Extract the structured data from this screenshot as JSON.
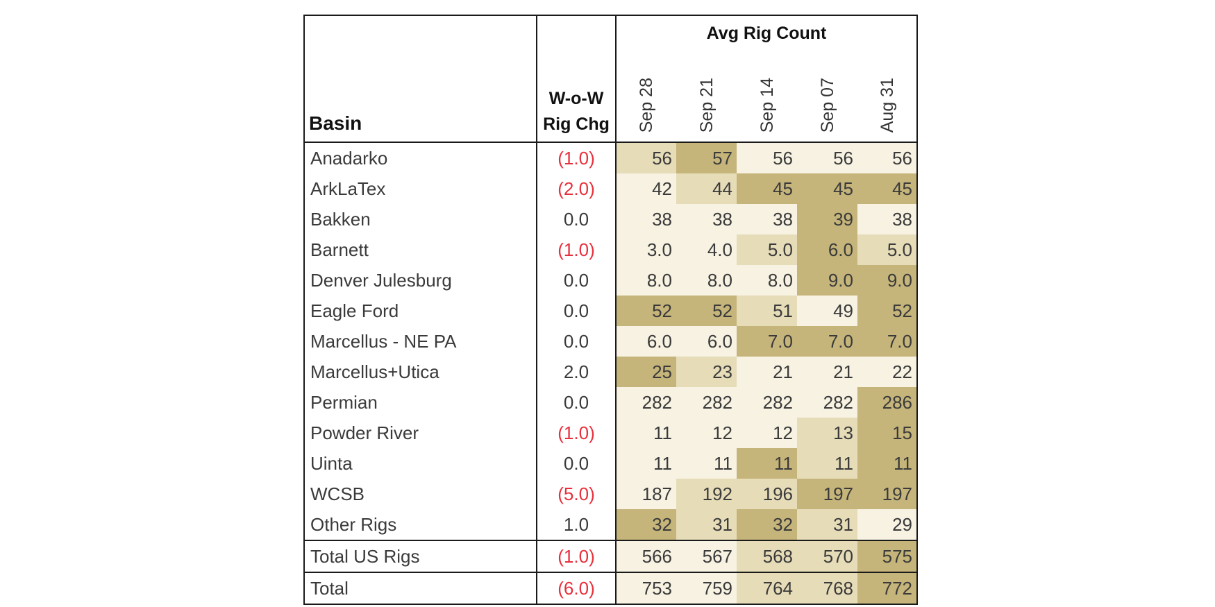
{
  "chart_data": {
    "type": "table",
    "title": "Avg Rig Count",
    "columns": {
      "basin": "Basin",
      "change_line1": "W-o-W",
      "change_line2": "Rig Chg",
      "weeks": [
        "Sep 28",
        "Sep 21",
        "Sep 14",
        "Sep 07",
        "Aug 31"
      ]
    },
    "colors": {
      "low": "#f7f2e2",
      "mid": "#e6dcb8",
      "high": "#c6b57a",
      "negative_text": "#e8303c",
      "border": "#1a1a1a"
    },
    "rows": [
      {
        "basin": "Anadarko",
        "change": "(1.0)",
        "negative": true,
        "values": [
          "56",
          "57",
          "56",
          "56",
          "56"
        ],
        "shade": [
          2,
          3,
          1,
          1,
          1
        ]
      },
      {
        "basin": "ArkLaTex",
        "change": "(2.0)",
        "negative": true,
        "values": [
          "42",
          "44",
          "45",
          "45",
          "45"
        ],
        "shade": [
          1,
          2,
          3,
          3,
          3
        ]
      },
      {
        "basin": "Bakken",
        "change": "0.0",
        "negative": false,
        "values": [
          "38",
          "38",
          "38",
          "39",
          "38"
        ],
        "shade": [
          1,
          1,
          1,
          3,
          1
        ]
      },
      {
        "basin": "Barnett",
        "change": "(1.0)",
        "negative": true,
        "values": [
          "3.0",
          "4.0",
          "5.0",
          "6.0",
          "5.0"
        ],
        "shade": [
          1,
          1,
          2,
          3,
          2
        ]
      },
      {
        "basin": "Denver Julesburg",
        "change": "0.0",
        "negative": false,
        "values": [
          "8.0",
          "8.0",
          "8.0",
          "9.0",
          "9.0"
        ],
        "shade": [
          1,
          1,
          1,
          3,
          3
        ]
      },
      {
        "basin": "Eagle Ford",
        "change": "0.0",
        "negative": false,
        "values": [
          "52",
          "52",
          "51",
          "49",
          "52"
        ],
        "shade": [
          3,
          3,
          2,
          1,
          3
        ]
      },
      {
        "basin": "Marcellus - NE PA",
        "change": "0.0",
        "negative": false,
        "values": [
          "6.0",
          "6.0",
          "7.0",
          "7.0",
          "7.0"
        ],
        "shade": [
          1,
          1,
          3,
          3,
          3
        ]
      },
      {
        "basin": "Marcellus+Utica",
        "change": "2.0",
        "negative": false,
        "values": [
          "25",
          "23",
          "21",
          "21",
          "22"
        ],
        "shade": [
          3,
          2,
          1,
          1,
          1
        ]
      },
      {
        "basin": "Permian",
        "change": "0.0",
        "negative": false,
        "values": [
          "282",
          "282",
          "282",
          "282",
          "286"
        ],
        "shade": [
          1,
          1,
          1,
          1,
          3
        ]
      },
      {
        "basin": "Powder River",
        "change": "(1.0)",
        "negative": true,
        "values": [
          "11",
          "12",
          "12",
          "13",
          "15"
        ],
        "shade": [
          1,
          1,
          1,
          2,
          3
        ]
      },
      {
        "basin": "Uinta",
        "change": "0.0",
        "negative": false,
        "values": [
          "11",
          "11",
          "11",
          "11",
          "11"
        ],
        "shade": [
          1,
          1,
          3,
          2,
          3
        ]
      },
      {
        "basin": "WCSB",
        "change": "(5.0)",
        "negative": true,
        "values": [
          "187",
          "192",
          "196",
          "197",
          "197"
        ],
        "shade": [
          1,
          2,
          2,
          3,
          3
        ]
      },
      {
        "basin": "Other Rigs",
        "change": "1.0",
        "negative": false,
        "values": [
          "32",
          "31",
          "32",
          "31",
          "29"
        ],
        "shade": [
          3,
          2,
          3,
          2,
          1
        ]
      }
    ],
    "totals": [
      {
        "basin": "Total US Rigs",
        "change": "(1.0)",
        "negative": true,
        "values": [
          "566",
          "567",
          "568",
          "570",
          "575"
        ],
        "shade": [
          1,
          1,
          2,
          2,
          3
        ]
      },
      {
        "basin": "Total",
        "change": "(6.0)",
        "negative": true,
        "values": [
          "753",
          "759",
          "764",
          "768",
          "772"
        ],
        "shade": [
          1,
          1,
          2,
          2,
          3
        ]
      }
    ]
  }
}
